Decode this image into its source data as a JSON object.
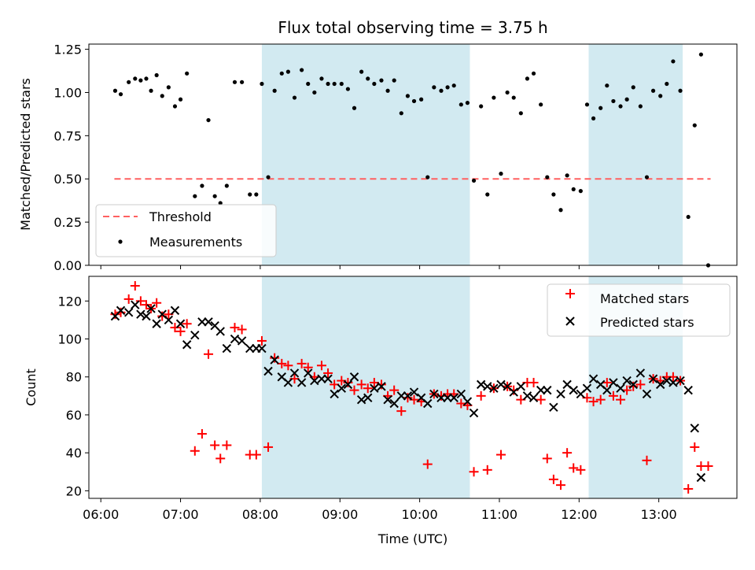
{
  "chart_data": {
    "type": "scatter",
    "title": "Flux total observing time = 3.75 h",
    "xlabel": "Time (UTC)",
    "x_ticks": [
      "06:00",
      "07:00",
      "08:00",
      "09:00",
      "10:00",
      "11:00",
      "12:00",
      "13:00"
    ],
    "x_range_hours": [
      5.85,
      13.98
    ],
    "shaded_intervals": [
      [
        8.02,
        10.63
      ],
      [
        12.12,
        13.3
      ]
    ],
    "colors": {
      "shade": "#add8e6",
      "matched": "#ff0000",
      "predicted": "#000000",
      "threshold": "#ff6060"
    },
    "top": {
      "ylabel": "Matched/Predicted stars",
      "ylim": [
        0,
        1.28
      ],
      "y_ticks": [
        "0.00",
        "0.25",
        "0.50",
        "0.75",
        "1.00",
        "1.25"
      ],
      "threshold": {
        "name": "Threshold",
        "y": 0.5,
        "x_range": [
          6.17,
          13.65
        ]
      },
      "measurements_name": "Measurements",
      "legend_placement": "lower-left",
      "measurements": [
        [
          6.18,
          1.01
        ],
        [
          6.25,
          0.99
        ],
        [
          6.35,
          1.06
        ],
        [
          6.43,
          1.08
        ],
        [
          6.5,
          1.07
        ],
        [
          6.57,
          1.08
        ],
        [
          6.63,
          1.01
        ],
        [
          6.7,
          1.1
        ],
        [
          6.77,
          0.98
        ],
        [
          6.85,
          1.03
        ],
        [
          6.93,
          0.92
        ],
        [
          7.0,
          0.96
        ],
        [
          7.08,
          1.11
        ],
        [
          7.18,
          0.4
        ],
        [
          7.27,
          0.46
        ],
        [
          7.35,
          0.84
        ],
        [
          7.43,
          0.4
        ],
        [
          7.5,
          0.36
        ],
        [
          7.58,
          0.46
        ],
        [
          7.68,
          1.06
        ],
        [
          7.77,
          1.06
        ],
        [
          7.87,
          0.41
        ],
        [
          7.95,
          0.41
        ],
        [
          8.02,
          1.05
        ],
        [
          8.1,
          0.51
        ],
        [
          8.18,
          1.01
        ],
        [
          8.27,
          1.11
        ],
        [
          8.35,
          1.12
        ],
        [
          8.43,
          0.97
        ],
        [
          8.52,
          1.13
        ],
        [
          8.6,
          1.05
        ],
        [
          8.68,
          1.0
        ],
        [
          8.77,
          1.08
        ],
        [
          8.85,
          1.05
        ],
        [
          8.93,
          1.05
        ],
        [
          9.02,
          1.05
        ],
        [
          9.1,
          1.02
        ],
        [
          9.18,
          0.91
        ],
        [
          9.27,
          1.12
        ],
        [
          9.35,
          1.08
        ],
        [
          9.43,
          1.05
        ],
        [
          9.52,
          1.07
        ],
        [
          9.6,
          1.01
        ],
        [
          9.68,
          1.07
        ],
        [
          9.77,
          0.88
        ],
        [
          9.85,
          0.98
        ],
        [
          9.93,
          0.95
        ],
        [
          10.02,
          0.96
        ],
        [
          10.1,
          0.51
        ],
        [
          10.18,
          1.03
        ],
        [
          10.27,
          1.01
        ],
        [
          10.35,
          1.03
        ],
        [
          10.43,
          1.04
        ],
        [
          10.52,
          0.93
        ],
        [
          10.6,
          0.94
        ],
        [
          10.68,
          0.49
        ],
        [
          10.77,
          0.92
        ],
        [
          10.85,
          0.41
        ],
        [
          10.93,
          0.97
        ],
        [
          11.02,
          0.53
        ],
        [
          11.1,
          1.0
        ],
        [
          11.18,
          0.97
        ],
        [
          11.27,
          0.88
        ],
        [
          11.35,
          1.08
        ],
        [
          11.43,
          1.11
        ],
        [
          11.52,
          0.93
        ],
        [
          11.6,
          0.51
        ],
        [
          11.68,
          0.41
        ],
        [
          11.77,
          0.32
        ],
        [
          11.85,
          0.52
        ],
        [
          11.93,
          0.44
        ],
        [
          12.02,
          0.43
        ],
        [
          12.1,
          0.93
        ],
        [
          12.18,
          0.85
        ],
        [
          12.27,
          0.91
        ],
        [
          12.35,
          1.04
        ],
        [
          12.43,
          0.95
        ],
        [
          12.52,
          0.92
        ],
        [
          12.6,
          0.96
        ],
        [
          12.68,
          1.03
        ],
        [
          12.77,
          0.92
        ],
        [
          12.85,
          0.51
        ],
        [
          12.93,
          1.01
        ],
        [
          13.02,
          0.98
        ],
        [
          13.1,
          1.05
        ],
        [
          13.18,
          1.18
        ],
        [
          13.27,
          1.01
        ],
        [
          13.37,
          0.28
        ],
        [
          13.45,
          0.81
        ],
        [
          13.53,
          1.22
        ],
        [
          13.62,
          0.0
        ]
      ]
    },
    "bottom": {
      "ylabel": "Count",
      "ylim": [
        16,
        133
      ],
      "y_ticks": [
        20,
        40,
        60,
        80,
        100,
        120
      ],
      "legend_placement": "upper-right",
      "matched_name": "Matched stars",
      "predicted_name": "Predicted stars",
      "matched": [
        [
          6.18,
          113
        ],
        [
          6.25,
          114
        ],
        [
          6.35,
          121
        ],
        [
          6.43,
          128
        ],
        [
          6.5,
          120
        ],
        [
          6.57,
          118
        ],
        [
          6.63,
          116
        ],
        [
          6.7,
          119
        ],
        [
          6.77,
          112
        ],
        [
          6.85,
          113
        ],
        [
          6.93,
          106
        ],
        [
          7.0,
          104
        ],
        [
          7.08,
          108
        ],
        [
          7.18,
          41
        ],
        [
          7.27,
          50
        ],
        [
          7.35,
          92
        ],
        [
          7.43,
          44
        ],
        [
          7.5,
          37
        ],
        [
          7.58,
          44
        ],
        [
          7.68,
          106
        ],
        [
          7.77,
          105
        ],
        [
          7.87,
          39
        ],
        [
          7.95,
          39
        ],
        [
          8.02,
          99
        ],
        [
          8.1,
          43
        ],
        [
          8.18,
          90
        ],
        [
          8.27,
          87
        ],
        [
          8.35,
          86
        ],
        [
          8.43,
          79
        ],
        [
          8.52,
          87
        ],
        [
          8.6,
          85
        ],
        [
          8.68,
          80
        ],
        [
          8.77,
          86
        ],
        [
          8.85,
          82
        ],
        [
          8.93,
          76
        ],
        [
          9.02,
          78
        ],
        [
          9.1,
          77
        ],
        [
          9.18,
          73
        ],
        [
          9.27,
          76
        ],
        [
          9.35,
          74
        ],
        [
          9.43,
          77
        ],
        [
          9.52,
          76
        ],
        [
          9.6,
          70
        ],
        [
          9.68,
          73
        ],
        [
          9.77,
          62
        ],
        [
          9.85,
          69
        ],
        [
          9.93,
          68
        ],
        [
          10.02,
          67
        ],
        [
          10.1,
          34
        ],
        [
          10.18,
          71
        ],
        [
          10.27,
          70
        ],
        [
          10.35,
          71
        ],
        [
          10.43,
          71
        ],
        [
          10.52,
          66
        ],
        [
          10.6,
          65
        ],
        [
          10.68,
          30
        ],
        [
          10.77,
          70
        ],
        [
          10.85,
          31
        ],
        [
          10.93,
          74
        ],
        [
          11.02,
          39
        ],
        [
          11.1,
          75
        ],
        [
          11.18,
          73
        ],
        [
          11.27,
          68
        ],
        [
          11.35,
          77
        ],
        [
          11.43,
          77
        ],
        [
          11.52,
          68
        ],
        [
          11.6,
          37
        ],
        [
          11.68,
          26
        ],
        [
          11.77,
          23
        ],
        [
          11.85,
          40
        ],
        [
          11.93,
          32
        ],
        [
          12.02,
          31
        ],
        [
          12.1,
          69
        ],
        [
          12.18,
          67
        ],
        [
          12.27,
          68
        ],
        [
          12.35,
          77
        ],
        [
          12.43,
          70
        ],
        [
          12.52,
          68
        ],
        [
          12.6,
          73
        ],
        [
          12.68,
          75
        ],
        [
          12.77,
          76
        ],
        [
          12.85,
          36
        ],
        [
          12.93,
          79
        ],
        [
          13.02,
          78
        ],
        [
          13.1,
          80
        ],
        [
          13.18,
          80
        ],
        [
          13.27,
          78
        ],
        [
          13.37,
          21
        ],
        [
          13.45,
          43
        ],
        [
          13.53,
          33
        ],
        [
          13.62,
          33
        ]
      ],
      "predicted": [
        [
          6.18,
          112
        ],
        [
          6.25,
          115
        ],
        [
          6.35,
          114
        ],
        [
          6.43,
          118
        ],
        [
          6.5,
          113
        ],
        [
          6.57,
          112
        ],
        [
          6.63,
          116
        ],
        [
          6.7,
          108
        ],
        [
          6.77,
          113
        ],
        [
          6.85,
          110
        ],
        [
          6.93,
          115
        ],
        [
          7.0,
          108
        ],
        [
          7.08,
          97
        ],
        [
          7.18,
          102
        ],
        [
          7.27,
          109
        ],
        [
          7.35,
          109
        ],
        [
          7.43,
          107
        ],
        [
          7.5,
          104
        ],
        [
          7.58,
          95
        ],
        [
          7.68,
          100
        ],
        [
          7.77,
          99
        ],
        [
          7.87,
          95
        ],
        [
          7.95,
          95
        ],
        [
          8.02,
          95
        ],
        [
          8.1,
          83
        ],
        [
          8.18,
          89
        ],
        [
          8.27,
          80
        ],
        [
          8.35,
          77
        ],
        [
          8.43,
          82
        ],
        [
          8.52,
          77
        ],
        [
          8.6,
          82
        ],
        [
          8.68,
          78
        ],
        [
          8.77,
          79
        ],
        [
          8.85,
          79
        ],
        [
          8.93,
          71
        ],
        [
          9.02,
          74
        ],
        [
          9.1,
          76
        ],
        [
          9.18,
          80
        ],
        [
          9.27,
          68
        ],
        [
          9.35,
          69
        ],
        [
          9.43,
          74
        ],
        [
          9.52,
          75
        ],
        [
          9.6,
          68
        ],
        [
          9.68,
          66
        ],
        [
          9.77,
          70
        ],
        [
          9.85,
          70
        ],
        [
          9.93,
          72
        ],
        [
          10.02,
          69
        ],
        [
          10.1,
          66
        ],
        [
          10.18,
          71
        ],
        [
          10.27,
          69
        ],
        [
          10.35,
          69
        ],
        [
          10.43,
          69
        ],
        [
          10.52,
          71
        ],
        [
          10.6,
          67
        ],
        [
          10.68,
          61
        ],
        [
          10.77,
          76
        ],
        [
          10.85,
          75
        ],
        [
          10.93,
          74
        ],
        [
          11.02,
          76
        ],
        [
          11.1,
          75
        ],
        [
          11.18,
          72
        ],
        [
          11.27,
          75
        ],
        [
          11.35,
          70
        ],
        [
          11.43,
          69
        ],
        [
          11.52,
          73
        ],
        [
          11.6,
          73
        ],
        [
          11.68,
          64
        ],
        [
          11.77,
          71
        ],
        [
          11.85,
          76
        ],
        [
          11.93,
          73
        ],
        [
          12.02,
          71
        ],
        [
          12.1,
          74
        ],
        [
          12.18,
          79
        ],
        [
          12.27,
          76
        ],
        [
          12.35,
          73
        ],
        [
          12.43,
          77
        ],
        [
          12.52,
          74
        ],
        [
          12.6,
          78
        ],
        [
          12.68,
          76
        ],
        [
          12.77,
          82
        ],
        [
          12.85,
          71
        ],
        [
          12.93,
          79
        ],
        [
          13.02,
          76
        ],
        [
          13.1,
          78
        ],
        [
          13.18,
          77
        ],
        [
          13.27,
          78
        ],
        [
          13.37,
          73
        ],
        [
          13.45,
          53
        ],
        [
          13.53,
          27
        ]
      ]
    }
  }
}
